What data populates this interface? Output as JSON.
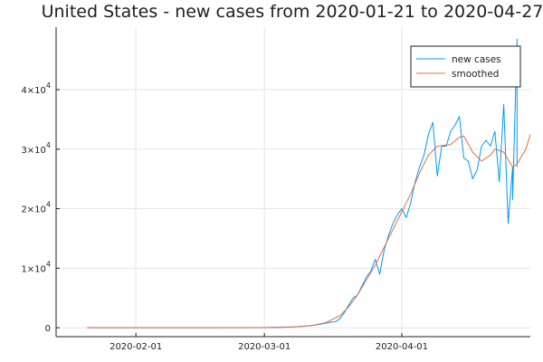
{
  "chart_data": {
    "type": "line",
    "title": "United States - new cases from 2020-01-21 to 2020-04-27",
    "xlabel": "",
    "ylabel": "",
    "x_start": "2020-01-21",
    "x_end": "2020-04-27",
    "xlim": [
      "2020-01-14",
      "2020-04-30"
    ],
    "ylim": [
      -1500,
      50500
    ],
    "x_ticks": [
      {
        "value": "2020-02-01",
        "label": "2020-02-01"
      },
      {
        "value": "2020-03-01",
        "label": "2020-03-01"
      },
      {
        "value": "2020-04-01",
        "label": "2020-04-01"
      }
    ],
    "y_ticks": [
      {
        "value": 0,
        "label": "0",
        "exp": ""
      },
      {
        "value": 10000,
        "label": "1×10",
        "exp": "4"
      },
      {
        "value": 20000,
        "label": "2×10",
        "exp": "4"
      },
      {
        "value": 30000,
        "label": "3×10",
        "exp": "4"
      },
      {
        "value": 40000,
        "label": "4×10",
        "exp": "4"
      }
    ],
    "grid": true,
    "legend_position": "top-right",
    "series": [
      {
        "name": "new cases",
        "color": "#009af9",
        "points": [
          [
            "2020-01-21",
            0
          ],
          [
            "2020-02-01",
            0
          ],
          [
            "2020-02-15",
            2
          ],
          [
            "2020-02-26",
            10
          ],
          [
            "2020-03-01",
            15
          ],
          [
            "2020-03-05",
            60
          ],
          [
            "2020-03-08",
            150
          ],
          [
            "2020-03-10",
            250
          ],
          [
            "2020-03-12",
            400
          ],
          [
            "2020-03-14",
            650
          ],
          [
            "2020-03-16",
            950
          ],
          [
            "2020-03-17",
            1000
          ],
          [
            "2020-03-18",
            1500
          ],
          [
            "2020-03-19",
            2500
          ],
          [
            "2020-03-20",
            3800
          ],
          [
            "2020-03-21",
            5000
          ],
          [
            "2020-03-22",
            5500
          ],
          [
            "2020-03-23",
            7000
          ],
          [
            "2020-03-24",
            8500
          ],
          [
            "2020-03-25",
            9500
          ],
          [
            "2020-03-26",
            11500
          ],
          [
            "2020-03-27",
            9000
          ],
          [
            "2020-03-28",
            13000
          ],
          [
            "2020-03-29",
            15500
          ],
          [
            "2020-03-30",
            17500
          ],
          [
            "2020-03-31",
            19000
          ],
          [
            "2020-04-01",
            20000
          ],
          [
            "2020-04-02",
            18500
          ],
          [
            "2020-04-03",
            21000
          ],
          [
            "2020-04-04",
            24500
          ],
          [
            "2020-04-05",
            27000
          ],
          [
            "2020-04-06",
            29000
          ],
          [
            "2020-04-07",
            32500
          ],
          [
            "2020-04-08",
            34500
          ],
          [
            "2020-04-09",
            25500
          ],
          [
            "2020-04-10",
            30500
          ],
          [
            "2020-04-11",
            30500
          ],
          [
            "2020-04-12",
            33000
          ],
          [
            "2020-04-13",
            34000
          ],
          [
            "2020-04-14",
            35500
          ],
          [
            "2020-04-15",
            28500
          ],
          [
            "2020-04-16",
            28000
          ],
          [
            "2020-04-17",
            25000
          ],
          [
            "2020-04-18",
            26500
          ],
          [
            "2020-04-19",
            30500
          ],
          [
            "2020-04-20",
            31500
          ],
          [
            "2020-04-21",
            30500
          ],
          [
            "2020-04-22",
            33000
          ],
          [
            "2020-04-23",
            24500
          ],
          [
            "2020-04-24",
            37500
          ],
          [
            "2020-04-25",
            17500
          ],
          [
            "2020-04-26",
            27000
          ],
          [
            "2020-04-26",
            21500
          ],
          [
            "2020-04-27",
            48500
          ],
          [
            "2020-04-27",
            27000
          ]
        ]
      },
      {
        "name": "smoothed",
        "color": "#e26f46",
        "points": [
          [
            "2020-01-21",
            0
          ],
          [
            "2020-02-01",
            0
          ],
          [
            "2020-02-20",
            5
          ],
          [
            "2020-03-01",
            30
          ],
          [
            "2020-03-08",
            150
          ],
          [
            "2020-03-12",
            400
          ],
          [
            "2020-03-15",
            900
          ],
          [
            "2020-03-18",
            2000
          ],
          [
            "2020-03-20",
            3500
          ],
          [
            "2020-03-22",
            5500
          ],
          [
            "2020-03-24",
            8000
          ],
          [
            "2020-03-26",
            10500
          ],
          [
            "2020-03-28",
            13500
          ],
          [
            "2020-03-30",
            16500
          ],
          [
            "2020-04-01",
            19500
          ],
          [
            "2020-04-03",
            22500
          ],
          [
            "2020-04-05",
            26000
          ],
          [
            "2020-04-07",
            29000
          ],
          [
            "2020-04-09",
            30500
          ],
          [
            "2020-04-12",
            30800
          ],
          [
            "2020-04-14",
            32000
          ],
          [
            "2020-04-15",
            32200
          ],
          [
            "2020-04-17",
            29500
          ],
          [
            "2020-04-19",
            28000
          ],
          [
            "2020-04-21",
            29000
          ],
          [
            "2020-04-22",
            30000
          ],
          [
            "2020-04-24",
            29500
          ],
          [
            "2020-04-26",
            27000
          ],
          [
            "2020-04-27",
            27500
          ],
          [
            "2020-04-29",
            30000
          ],
          [
            "2020-04-30",
            32500
          ]
        ]
      }
    ]
  }
}
